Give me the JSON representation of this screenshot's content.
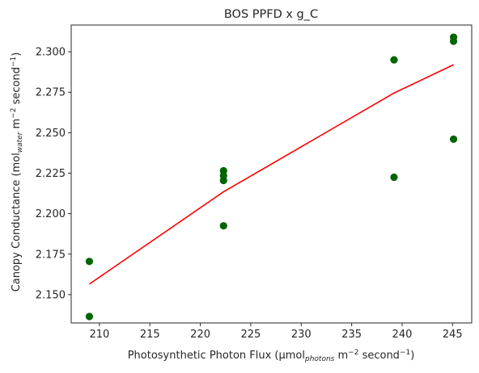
{
  "chart_data": {
    "type": "scatter",
    "title": "BOS PPFD x g_C",
    "xlabel": {
      "pre": "Photosynthetic Photon Flux (µmol",
      "sub": "photons",
      "mid": " m",
      "sup1": "−2",
      "mid2": " second",
      "sup2": "−1",
      "post": ")"
    },
    "ylabel": {
      "pre": "Canopy Conductance (mol",
      "sub": "water",
      "mid": " m",
      "sup1": "−2",
      "mid2": " second",
      "sup2": "−1",
      "post": ")"
    },
    "xlim": [
      207.2,
      246.9
    ],
    "ylim": [
      2.1325,
      2.3165
    ],
    "xticks": [
      210,
      215,
      220,
      225,
      230,
      235,
      240,
      245
    ],
    "yticks": [
      2.15,
      2.175,
      2.2,
      2.225,
      2.25,
      2.275,
      2.3
    ],
    "ytick_labels": [
      "2.150",
      "2.175",
      "2.200",
      "2.225",
      "2.250",
      "2.275",
      "2.300"
    ],
    "grid": false,
    "point_color": "#006400",
    "line_color": "#ff0000",
    "points": [
      {
        "x": 209.0,
        "y": 2.1705
      },
      {
        "x": 209.0,
        "y": 2.1365
      },
      {
        "x": 222.3,
        "y": 2.2265
      },
      {
        "x": 222.3,
        "y": 2.2235
      },
      {
        "x": 222.3,
        "y": 2.2205
      },
      {
        "x": 222.3,
        "y": 2.1925
      },
      {
        "x": 239.2,
        "y": 2.295
      },
      {
        "x": 239.2,
        "y": 2.2225
      },
      {
        "x": 245.1,
        "y": 2.309
      },
      {
        "x": 245.1,
        "y": 2.3065
      },
      {
        "x": 245.1,
        "y": 2.246
      }
    ],
    "fit_line": [
      {
        "x": 209.0,
        "y": 2.1565
      },
      {
        "x": 222.3,
        "y": 2.2135
      },
      {
        "x": 239.2,
        "y": 2.2745
      },
      {
        "x": 245.1,
        "y": 2.292
      }
    ]
  }
}
